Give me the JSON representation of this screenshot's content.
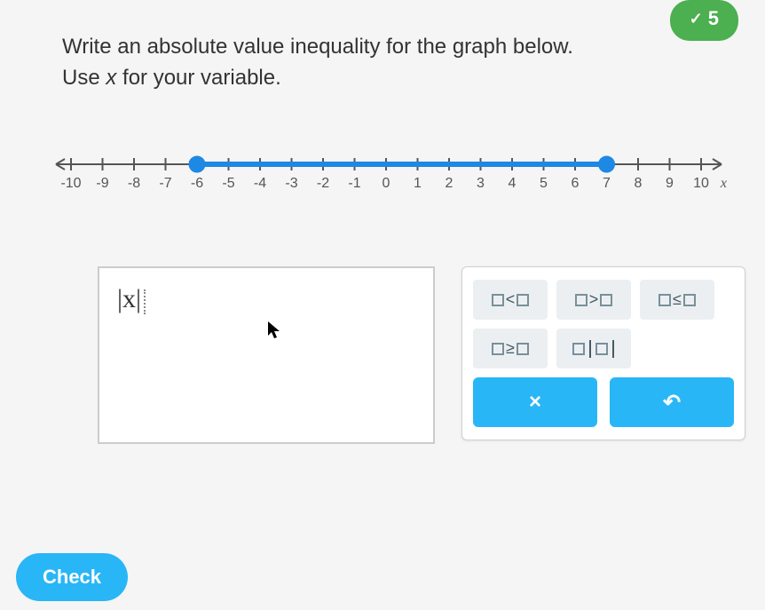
{
  "badge": {
    "check": "✓",
    "count": "5",
    "bg": "#4caf50"
  },
  "question": {
    "line1": "Write an absolute value inequality for the graph below.",
    "line2_pre": "Use ",
    "line2_var": "x",
    "line2_post": " for your variable."
  },
  "numberline": {
    "min": -10,
    "max": 10,
    "step": 1,
    "labels": [
      "-10",
      "-9",
      "-8",
      "-7",
      "-6",
      "-5",
      "-4",
      "-3",
      "-2",
      "-1",
      "0",
      "1",
      "2",
      "3",
      "4",
      "5",
      "6",
      "7",
      "8",
      "9",
      "10"
    ],
    "axis_label": "x",
    "axis_color": "#555555",
    "tick_color": "#555555",
    "label_color": "#555555",
    "label_fontsize": 16,
    "segment": {
      "from": -6,
      "to": 7,
      "color": "#1e88e5",
      "stroke_width": 6
    },
    "endpoints": [
      {
        "at": -6,
        "filled": true,
        "color": "#1e88e5",
        "r": 8
      },
      {
        "at": 7,
        "filled": true,
        "color": "#1e88e5",
        "r": 8
      }
    ]
  },
  "answer": {
    "prefix": "|x|",
    "has_cursor": true
  },
  "palette": {
    "row1": [
      {
        "id": "lt",
        "op": "<"
      },
      {
        "id": "gt",
        "op": ">"
      },
      {
        "id": "le",
        "op": "≤"
      }
    ],
    "row2": [
      {
        "id": "ge",
        "op": "≥"
      },
      {
        "id": "abs",
        "op": "abs"
      }
    ],
    "btn_bg": "#eceff1",
    "btn_fg": "#455a64",
    "action_bg": "#29b6f6",
    "clear_label": "×",
    "undo_label": "↶"
  },
  "check_label": "Check"
}
